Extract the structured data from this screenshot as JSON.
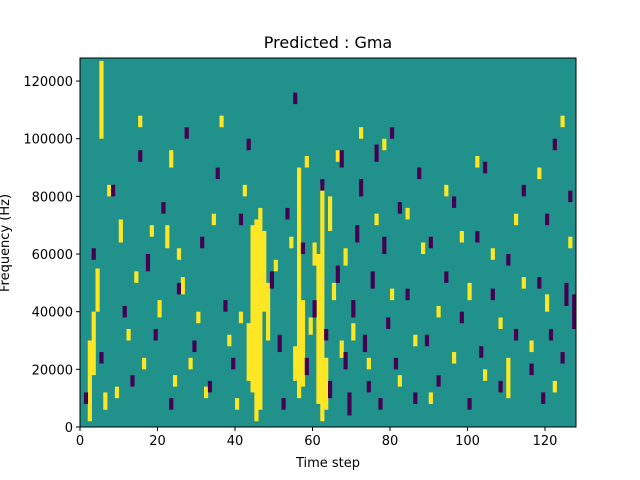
{
  "chart_data": {
    "type": "heatmap",
    "title": "Predicted : Gma",
    "xlabel": "Time step",
    "ylabel": "Frequency (Hz)",
    "xlim": [
      0,
      128
    ],
    "ylim": [
      0,
      128000
    ],
    "xticks": [
      0,
      20,
      40,
      60,
      80,
      100,
      120
    ],
    "yticks": [
      0,
      20000,
      40000,
      60000,
      80000,
      100000,
      120000
    ],
    "n_time_steps": 128,
    "n_freq_bins": 128,
    "values_legend": {
      "-1": "low (dark purple)",
      "0": "background (teal)",
      "1": "high (yellow)"
    },
    "colors": {
      "low": "#440154",
      "mid": "#21918c",
      "high": "#fde725"
    },
    "cells_high": [
      [
        2,
        2,
        30
      ],
      [
        3,
        18,
        40
      ],
      [
        4,
        40,
        55
      ],
      [
        5,
        100,
        127
      ],
      [
        6,
        6,
        12
      ],
      [
        7,
        80,
        84
      ],
      [
        9,
        10,
        14
      ],
      [
        10,
        64,
        72
      ],
      [
        12,
        30,
        34
      ],
      [
        14,
        50,
        54
      ],
      [
        15,
        104,
        108
      ],
      [
        16,
        20,
        24
      ],
      [
        18,
        66,
        70
      ],
      [
        20,
        38,
        44
      ],
      [
        22,
        62,
        70
      ],
      [
        23,
        90,
        96
      ],
      [
        24,
        14,
        18
      ],
      [
        25,
        58,
        62
      ],
      [
        26,
        46,
        52
      ],
      [
        28,
        20,
        24
      ],
      [
        30,
        36,
        40
      ],
      [
        32,
        10,
        14
      ],
      [
        34,
        70,
        74
      ],
      [
        36,
        104,
        108
      ],
      [
        38,
        28,
        32
      ],
      [
        40,
        6,
        10
      ],
      [
        41,
        36,
        40
      ],
      [
        42,
        80,
        84
      ],
      [
        43,
        16,
        36
      ],
      [
        44,
        12,
        70
      ],
      [
        45,
        2,
        72
      ],
      [
        46,
        6,
        76
      ],
      [
        47,
        40,
        68
      ],
      [
        48,
        30,
        50
      ],
      [
        50,
        54,
        58
      ],
      [
        54,
        62,
        66
      ],
      [
        55,
        16,
        28
      ],
      [
        56,
        10,
        90
      ],
      [
        57,
        14,
        44
      ],
      [
        58,
        90,
        94
      ],
      [
        59,
        32,
        38
      ],
      [
        60,
        56,
        64
      ],
      [
        61,
        8,
        60
      ],
      [
        62,
        2,
        84
      ],
      [
        63,
        6,
        24
      ],
      [
        64,
        68,
        80
      ],
      [
        65,
        44,
        50
      ],
      [
        66,
        92,
        96
      ],
      [
        67,
        24,
        30
      ],
      [
        68,
        56,
        62
      ],
      [
        70,
        30,
        36
      ],
      [
        72,
        100,
        104
      ],
      [
        74,
        20,
        24
      ],
      [
        76,
        70,
        74
      ],
      [
        78,
        96,
        100
      ],
      [
        80,
        44,
        48
      ],
      [
        82,
        14,
        18
      ],
      [
        84,
        72,
        76
      ],
      [
        86,
        28,
        32
      ],
      [
        88,
        60,
        64
      ],
      [
        90,
        8,
        12
      ],
      [
        92,
        38,
        42
      ],
      [
        94,
        80,
        84
      ],
      [
        96,
        22,
        26
      ],
      [
        98,
        64,
        68
      ],
      [
        100,
        44,
        50
      ],
      [
        102,
        90,
        94
      ],
      [
        104,
        16,
        20
      ],
      [
        106,
        58,
        62
      ],
      [
        108,
        34,
        38
      ],
      [
        110,
        10,
        24
      ],
      [
        112,
        70,
        74
      ],
      [
        114,
        48,
        52
      ],
      [
        116,
        26,
        30
      ],
      [
        118,
        86,
        90
      ],
      [
        120,
        40,
        46
      ],
      [
        122,
        12,
        16
      ],
      [
        124,
        104,
        108
      ],
      [
        126,
        62,
        66
      ]
    ],
    "cells_low": [
      [
        1,
        8,
        12
      ],
      [
        3,
        58,
        62
      ],
      [
        5,
        22,
        26
      ],
      [
        8,
        80,
        84
      ],
      [
        11,
        38,
        42
      ],
      [
        13,
        14,
        18
      ],
      [
        15,
        92,
        96
      ],
      [
        17,
        54,
        60
      ],
      [
        19,
        30,
        34
      ],
      [
        21,
        74,
        78
      ],
      [
        23,
        6,
        10
      ],
      [
        25,
        46,
        50
      ],
      [
        27,
        100,
        104
      ],
      [
        29,
        26,
        30
      ],
      [
        31,
        62,
        66
      ],
      [
        33,
        12,
        16
      ],
      [
        35,
        86,
        90
      ],
      [
        37,
        40,
        44
      ],
      [
        39,
        20,
        24
      ],
      [
        41,
        70,
        74
      ],
      [
        43,
        96,
        100
      ],
      [
        49,
        48,
        54
      ],
      [
        51,
        26,
        32
      ],
      [
        52,
        6,
        10
      ],
      [
        53,
        72,
        76
      ],
      [
        55,
        112,
        116
      ],
      [
        57,
        60,
        64
      ],
      [
        58,
        18,
        24
      ],
      [
        60,
        38,
        44
      ],
      [
        62,
        82,
        86
      ],
      [
        63,
        30,
        34
      ],
      [
        64,
        10,
        16
      ],
      [
        66,
        50,
        56
      ],
      [
        67,
        90,
        96
      ],
      [
        68,
        20,
        26
      ],
      [
        69,
        4,
        12
      ],
      [
        70,
        38,
        44
      ],
      [
        71,
        64,
        70
      ],
      [
        72,
        80,
        86
      ],
      [
        73,
        26,
        32
      ],
      [
        74,
        12,
        16
      ],
      [
        75,
        48,
        54
      ],
      [
        76,
        92,
        98
      ],
      [
        77,
        6,
        10
      ],
      [
        78,
        60,
        66
      ],
      [
        79,
        34,
        38
      ],
      [
        80,
        100,
        104
      ],
      [
        81,
        20,
        24
      ],
      [
        82,
        74,
        78
      ],
      [
        84,
        44,
        48
      ],
      [
        86,
        8,
        12
      ],
      [
        87,
        86,
        90
      ],
      [
        89,
        28,
        32
      ],
      [
        90,
        62,
        66
      ],
      [
        92,
        14,
        18
      ],
      [
        94,
        50,
        54
      ],
      [
        96,
        76,
        80
      ],
      [
        98,
        36,
        40
      ],
      [
        100,
        6,
        10
      ],
      [
        102,
        64,
        68
      ],
      [
        103,
        24,
        28
      ],
      [
        104,
        88,
        92
      ],
      [
        106,
        44,
        48
      ],
      [
        108,
        12,
        16
      ],
      [
        110,
        56,
        60
      ],
      [
        112,
        30,
        34
      ],
      [
        114,
        80,
        84
      ],
      [
        116,
        18,
        22
      ],
      [
        118,
        48,
        52
      ],
      [
        119,
        8,
        12
      ],
      [
        120,
        70,
        74
      ],
      [
        121,
        30,
        34
      ],
      [
        122,
        96,
        100
      ],
      [
        124,
        22,
        26
      ],
      [
        125,
        42,
        50
      ],
      [
        126,
        78,
        82
      ],
      [
        127,
        34,
        46
      ]
    ]
  }
}
